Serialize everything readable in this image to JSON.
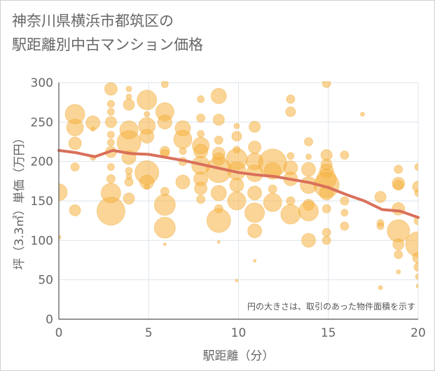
{
  "title_lines": [
    "神奈川県横浜市都筑区の",
    "駅距離別中古マンション価格"
  ],
  "chart_data": {
    "type": "scatter",
    "title": "神奈川県横浜市都筑区の駅距離別中古マンション価格",
    "xlabel": "駅距離（分）",
    "ylabel": "坪（3.3㎡）単価（万円）",
    "xlim": [
      0,
      20
    ],
    "ylim": [
      0,
      300
    ],
    "x_ticks": [
      0,
      5,
      10,
      15,
      20
    ],
    "y_ticks": [
      0,
      50,
      100,
      150,
      200,
      250,
      300
    ],
    "grid": true,
    "annotation": "円の大きさは、取引のあった物件面積を示す",
    "colors": {
      "bubble": "#f5b342",
      "trend": "#d9705a",
      "axis_text": "#666666",
      "grid": "#dde6ee"
    },
    "bubbles": [
      {
        "x": 0,
        "y": 161,
        "r": 12
      },
      {
        "x": 0,
        "y": 104,
        "r": 3
      },
      {
        "x": 0.9,
        "y": 260,
        "r": 14
      },
      {
        "x": 0.9,
        "y": 243,
        "r": 12
      },
      {
        "x": 0.9,
        "y": 223,
        "r": 9
      },
      {
        "x": 0.9,
        "y": 193,
        "r": 6
      },
      {
        "x": 0.9,
        "y": 138,
        "r": 8
      },
      {
        "x": 1.9,
        "y": 249,
        "r": 10
      },
      {
        "x": 1.9,
        "y": 241,
        "r": 3
      },
      {
        "x": 1.9,
        "y": 205,
        "r": 4
      },
      {
        "x": 2.9,
        "y": 292,
        "r": 9
      },
      {
        "x": 2.9,
        "y": 273,
        "r": 5
      },
      {
        "x": 2.9,
        "y": 263,
        "r": 5
      },
      {
        "x": 2.9,
        "y": 250,
        "r": 8
      },
      {
        "x": 2.9,
        "y": 234,
        "r": 5
      },
      {
        "x": 2.9,
        "y": 224,
        "r": 5
      },
      {
        "x": 2.9,
        "y": 212,
        "r": 8
      },
      {
        "x": 2.9,
        "y": 193,
        "r": 5
      },
      {
        "x": 2.9,
        "y": 178,
        "r": 6
      },
      {
        "x": 2.9,
        "y": 160,
        "r": 14
      },
      {
        "x": 2.9,
        "y": 137,
        "r": 20
      },
      {
        "x": 3.9,
        "y": 292,
        "r": 4
      },
      {
        "x": 3.9,
        "y": 282,
        "r": 4
      },
      {
        "x": 3.9,
        "y": 272,
        "r": 8
      },
      {
        "x": 3.9,
        "y": 240,
        "r": 13
      },
      {
        "x": 3.9,
        "y": 224,
        "r": 17
      },
      {
        "x": 3.9,
        "y": 205,
        "r": 10
      },
      {
        "x": 3.9,
        "y": 188,
        "r": 5
      },
      {
        "x": 3.9,
        "y": 181,
        "r": 4
      },
      {
        "x": 3.9,
        "y": 174,
        "r": 6
      },
      {
        "x": 3.9,
        "y": 153,
        "r": 8
      },
      {
        "x": 4.9,
        "y": 278,
        "r": 14
      },
      {
        "x": 4.9,
        "y": 260,
        "r": 4
      },
      {
        "x": 4.9,
        "y": 245,
        "r": 12
      },
      {
        "x": 4.9,
        "y": 232,
        "r": 10
      },
      {
        "x": 4.9,
        "y": 186,
        "r": 17
      },
      {
        "x": 4.9,
        "y": 174,
        "r": 10
      },
      {
        "x": 4.9,
        "y": 168,
        "r": 4
      },
      {
        "x": 5.9,
        "y": 298,
        "r": 5
      },
      {
        "x": 5.9,
        "y": 263,
        "r": 13
      },
      {
        "x": 5.9,
        "y": 250,
        "r": 10
      },
      {
        "x": 5.9,
        "y": 213,
        "r": 7
      },
      {
        "x": 5.9,
        "y": 210,
        "r": 6
      },
      {
        "x": 5.9,
        "y": 162,
        "r": 6
      },
      {
        "x": 5.9,
        "y": 145,
        "r": 15
      },
      {
        "x": 5.9,
        "y": 116,
        "r": 15
      },
      {
        "x": 5.9,
        "y": 95,
        "r": 2
      },
      {
        "x": 6.9,
        "y": 242,
        "r": 11
      },
      {
        "x": 6.9,
        "y": 228,
        "r": 13
      },
      {
        "x": 6.9,
        "y": 213,
        "r": 5
      },
      {
        "x": 6.9,
        "y": 200,
        "r": 6
      },
      {
        "x": 6.9,
        "y": 174,
        "r": 10
      },
      {
        "x": 7.9,
        "y": 279,
        "r": 5
      },
      {
        "x": 7.9,
        "y": 255,
        "r": 6
      },
      {
        "x": 7.9,
        "y": 235,
        "r": 5
      },
      {
        "x": 7.9,
        "y": 220,
        "r": 12
      },
      {
        "x": 7.9,
        "y": 213,
        "r": 10
      },
      {
        "x": 7.9,
        "y": 195,
        "r": 13
      },
      {
        "x": 7.9,
        "y": 178,
        "r": 10
      },
      {
        "x": 7.9,
        "y": 166,
        "r": 9
      },
      {
        "x": 7.9,
        "y": 152,
        "r": 6
      },
      {
        "x": 8.9,
        "y": 283,
        "r": 11
      },
      {
        "x": 8.9,
        "y": 253,
        "r": 8
      },
      {
        "x": 8.9,
        "y": 227,
        "r": 6
      },
      {
        "x": 8.9,
        "y": 210,
        "r": 9
      },
      {
        "x": 8.9,
        "y": 203,
        "r": 9
      },
      {
        "x": 8.9,
        "y": 189,
        "r": 18
      },
      {
        "x": 8.9,
        "y": 160,
        "r": 11
      },
      {
        "x": 8.9,
        "y": 140,
        "r": 6
      },
      {
        "x": 8.9,
        "y": 125,
        "r": 17
      },
      {
        "x": 8.9,
        "y": 98,
        "r": 2
      },
      {
        "x": 9.9,
        "y": 245,
        "r": 4
      },
      {
        "x": 9.9,
        "y": 232,
        "r": 7
      },
      {
        "x": 9.9,
        "y": 215,
        "r": 5
      },
      {
        "x": 9.9,
        "y": 203,
        "r": 15
      },
      {
        "x": 9.9,
        "y": 188,
        "r": 13
      },
      {
        "x": 9.9,
        "y": 170,
        "r": 10
      },
      {
        "x": 9.9,
        "y": 150,
        "r": 13
      },
      {
        "x": 9.9,
        "y": 49,
        "r": 2
      },
      {
        "x": 10.9,
        "y": 244,
        "r": 8
      },
      {
        "x": 10.9,
        "y": 218,
        "r": 9
      },
      {
        "x": 10.9,
        "y": 200,
        "r": 12
      },
      {
        "x": 10.9,
        "y": 185,
        "r": 12
      },
      {
        "x": 10.9,
        "y": 160,
        "r": 10
      },
      {
        "x": 10.9,
        "y": 135,
        "r": 14
      },
      {
        "x": 10.9,
        "y": 112,
        "r": 10
      },
      {
        "x": 10.9,
        "y": 74,
        "r": 2
      },
      {
        "x": 11.9,
        "y": 198,
        "r": 20
      },
      {
        "x": 11.9,
        "y": 188,
        "r": 12
      },
      {
        "x": 11.9,
        "y": 165,
        "r": 6
      },
      {
        "x": 11.9,
        "y": 148,
        "r": 13
      },
      {
        "x": 12.9,
        "y": 279,
        "r": 6
      },
      {
        "x": 12.9,
        "y": 263,
        "r": 7
      },
      {
        "x": 12.9,
        "y": 207,
        "r": 5
      },
      {
        "x": 12.9,
        "y": 192,
        "r": 10
      },
      {
        "x": 12.9,
        "y": 178,
        "r": 10
      },
      {
        "x": 12.9,
        "y": 150,
        "r": 6
      },
      {
        "x": 12.9,
        "y": 133,
        "r": 14
      },
      {
        "x": 13.9,
        "y": 225,
        "r": 6
      },
      {
        "x": 13.9,
        "y": 206,
        "r": 4
      },
      {
        "x": 13.9,
        "y": 190,
        "r": 10
      },
      {
        "x": 13.9,
        "y": 170,
        "r": 12
      },
      {
        "x": 13.9,
        "y": 145,
        "r": 8
      },
      {
        "x": 13.9,
        "y": 137,
        "r": 14
      },
      {
        "x": 13.9,
        "y": 100,
        "r": 10
      },
      {
        "x": 14.9,
        "y": 299,
        "r": 6
      },
      {
        "x": 14.9,
        "y": 208,
        "r": 8
      },
      {
        "x": 14.9,
        "y": 196,
        "r": 8
      },
      {
        "x": 14.9,
        "y": 188,
        "r": 10
      },
      {
        "x": 14.9,
        "y": 178,
        "r": 14
      },
      {
        "x": 14.9,
        "y": 170,
        "r": 18
      },
      {
        "x": 14.9,
        "y": 160,
        "r": 10
      },
      {
        "x": 14.9,
        "y": 140,
        "r": 6
      },
      {
        "x": 14.9,
        "y": 110,
        "r": 6
      },
      {
        "x": 14.9,
        "y": 100,
        "r": 6
      },
      {
        "x": 15.9,
        "y": 208,
        "r": 6
      },
      {
        "x": 15.9,
        "y": 150,
        "r": 6
      },
      {
        "x": 15.9,
        "y": 135,
        "r": 5
      },
      {
        "x": 15.9,
        "y": 118,
        "r": 6
      },
      {
        "x": 16.9,
        "y": 260,
        "r": 3
      },
      {
        "x": 17.9,
        "y": 155,
        "r": 8
      },
      {
        "x": 17.9,
        "y": 122,
        "r": 5
      },
      {
        "x": 17.9,
        "y": 118,
        "r": 5
      },
      {
        "x": 17.9,
        "y": 40,
        "r": 3
      },
      {
        "x": 18.9,
        "y": 190,
        "r": 6
      },
      {
        "x": 18.9,
        "y": 172,
        "r": 9
      },
      {
        "x": 18.9,
        "y": 170,
        "r": 7
      },
      {
        "x": 18.9,
        "y": 140,
        "r": 9
      },
      {
        "x": 18.9,
        "y": 112,
        "r": 16
      },
      {
        "x": 18.9,
        "y": 95,
        "r": 8
      },
      {
        "x": 18.9,
        "y": 82,
        "r": 6
      },
      {
        "x": 18.9,
        "y": 60,
        "r": 3
      },
      {
        "x": 20,
        "y": 193,
        "r": 5
      },
      {
        "x": 20,
        "y": 168,
        "r": 8
      },
      {
        "x": 20,
        "y": 160,
        "r": 5
      },
      {
        "x": 20,
        "y": 125,
        "r": 6
      },
      {
        "x": 20,
        "y": 95,
        "r": 18
      },
      {
        "x": 20,
        "y": 78,
        "r": 8
      },
      {
        "x": 20,
        "y": 66,
        "r": 6
      },
      {
        "x": 20,
        "y": 54,
        "r": 4
      },
      {
        "x": 20,
        "y": 42,
        "r": 3
      }
    ],
    "trend": {
      "x": [
        0,
        1,
        2,
        3,
        4,
        5,
        6,
        7,
        8,
        9,
        10,
        11,
        12,
        13,
        14,
        15,
        16,
        17,
        18,
        19,
        20
      ],
      "y": [
        214,
        211,
        206,
        214,
        210,
        209,
        205,
        201,
        196,
        191,
        186,
        183,
        181,
        177,
        173,
        167,
        158,
        150,
        139,
        137,
        129
      ]
    }
  }
}
